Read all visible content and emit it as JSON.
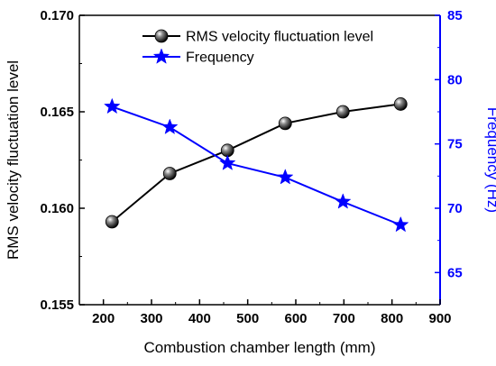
{
  "chart_data": {
    "type": "line",
    "xlabel": "Combustion chamber length (mm)",
    "ylabel_left": "RMS velocity fluctuation level",
    "ylabel_right": "Frequency (Hz)",
    "xlim": [
      150,
      900
    ],
    "xticks": [
      200,
      300,
      400,
      500,
      600,
      700,
      800,
      900
    ],
    "ylim_left": [
      0.155,
      0.17
    ],
    "yticks_left": [
      "0.155",
      "0.160",
      "0.165",
      "0.170"
    ],
    "ylim_right": [
      62.5,
      85
    ],
    "yticks_right": [
      "65",
      "70",
      "75",
      "80",
      "85"
    ],
    "grid": false,
    "legend_position": "top-right",
    "colors": {
      "left_axis": "#000000",
      "right_axis": "#0000ff",
      "rms": "#000000",
      "frequency": "#0000ff"
    },
    "x": [
      218,
      338,
      458,
      578,
      698,
      818
    ],
    "series": [
      {
        "name": "RMS velocity fluctuation level",
        "axis": "left",
        "marker": "sphere",
        "values": [
          0.1593,
          0.1618,
          0.163,
          0.1644,
          0.165,
          0.1654
        ]
      },
      {
        "name": "Frequency",
        "axis": "right",
        "marker": "star",
        "values": [
          77.9,
          76.3,
          73.5,
          72.4,
          70.5,
          68.7
        ]
      }
    ]
  }
}
